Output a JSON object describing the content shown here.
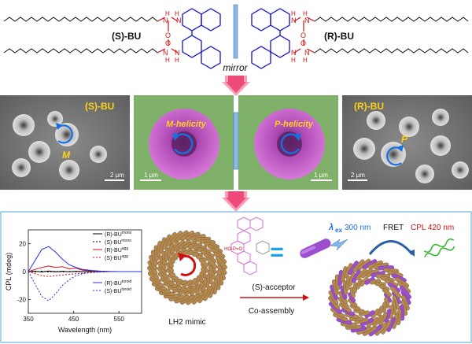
{
  "molecules": {
    "left_label": "(S)-BU",
    "right_label": "(R)-BU",
    "mirror_label": "mirror",
    "atom_O": "O",
    "atom_N": "N",
    "atom_H": "H"
  },
  "micrographs": {
    "s_label": "(S)-BU",
    "r_label": "(R)-BU",
    "m_marker": "M",
    "p_marker": "P",
    "m_helicity": "M-helicity",
    "p_helicity": "P-helicity",
    "scale_2um": "2 μm",
    "scale_1um": "1 μm"
  },
  "cpl": {
    "ylabel": "CPL (mdeg)",
    "xlabel": "Wavelength (nm)",
    "legend": [
      {
        "name": "(R)-BU",
        "sup": "mono",
        "color": "#000000",
        "dash": "none"
      },
      {
        "name": "(S)-BU",
        "sup": "mono",
        "color": "#000000",
        "dash": "2,2"
      },
      {
        "name": "(R)-BU",
        "sup": "agg",
        "color": "#d01010",
        "dash": "none"
      },
      {
        "name": "(S)-BU",
        "sup": "agg",
        "color": "#d01010",
        "dash": "2,2"
      },
      {
        "name": "(R)-BU",
        "sup": "toroid",
        "color": "#2030e0",
        "dash": "none"
      },
      {
        "name": "(S)-BU",
        "sup": "toroid",
        "color": "#2030e0",
        "dash": "2,2"
      }
    ]
  },
  "chart_data": {
    "type": "line",
    "xlabel": "Wavelength (nm)",
    "ylabel": "CPL (mdeg)",
    "xlim": [
      350,
      600
    ],
    "ylim": [
      -30,
      30
    ],
    "xticks": [
      350,
      450,
      550
    ],
    "yticks": [
      -20,
      0,
      20
    ],
    "x": [
      350,
      365,
      380,
      395,
      410,
      425,
      440,
      455,
      470,
      490,
      510,
      530,
      550,
      575,
      600
    ],
    "series": [
      {
        "name": "(R)-BU mono",
        "values": [
          0,
          0.2,
          -0.3,
          0.4,
          -0.2,
          0.3,
          -0.1,
          0.2,
          0,
          0.1,
          0,
          0,
          0,
          0,
          0
        ]
      },
      {
        "name": "(S)-BU mono",
        "values": [
          0,
          -0.2,
          0.3,
          -0.3,
          0.2,
          -0.2,
          0.1,
          -0.1,
          0,
          0,
          0,
          0,
          0,
          0,
          0
        ]
      },
      {
        "name": "(R)-BU agg",
        "values": [
          0,
          1.5,
          3,
          4,
          3,
          3.5,
          2,
          2.5,
          1,
          0.5,
          0.3,
          0.1,
          0,
          0,
          0
        ]
      },
      {
        "name": "(S)-BU agg",
        "values": [
          0,
          -1.5,
          -3,
          -3.5,
          -3,
          -2.5,
          -2,
          -1.5,
          -1,
          -0.5,
          -0.2,
          0,
          0,
          0,
          0
        ]
      },
      {
        "name": "(R)-BU toroid",
        "values": [
          0,
          8,
          16,
          18,
          14,
          9,
          5,
          3,
          1.5,
          0.8,
          0.3,
          0,
          0,
          0,
          0
        ]
      },
      {
        "name": "(S)-BU toroid",
        "values": [
          0,
          -9,
          -18,
          -21,
          -16,
          -10,
          -6,
          -3,
          -1.5,
          -0.7,
          -0.3,
          0,
          0,
          0,
          0
        ]
      }
    ]
  },
  "scheme": {
    "toroid_label": "LH2 mimic",
    "acceptor_label": "(S)-acceptor",
    "coassembly_label": "Co-assembly",
    "equals": "=",
    "excitation_symbol": "λ",
    "excitation_sub": "ex",
    "excitation_value": "300 nm",
    "fret_label": "FRET",
    "cpl_label": "CPL 420 nm"
  },
  "colors": {
    "molecule_blue": "#1010d0",
    "molecule_red": "#d01010",
    "arrow_pink": "#f04a7a",
    "sem_yellow": "#ffd21a",
    "magenta_particle": "#c44fc6",
    "green_bg": "#7fb069",
    "mirror_blue": "#7fb6ee",
    "stick_tan": "#b4894f",
    "acceptor_purple": "#9b4fcf"
  }
}
